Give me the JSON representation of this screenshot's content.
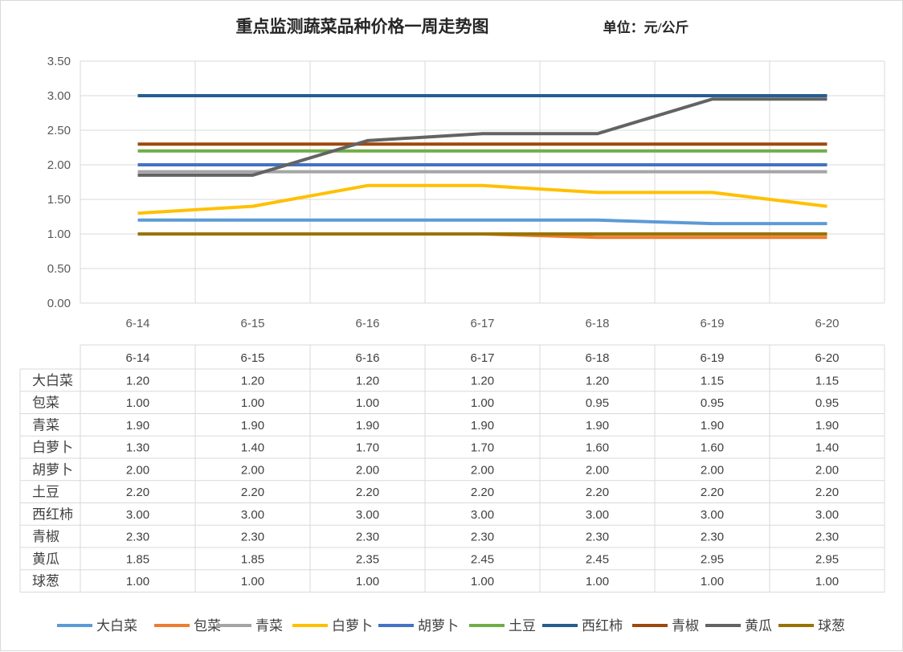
{
  "chart_data": {
    "type": "line",
    "title": "重点监测蔬菜品种价格一周走势图",
    "unit_label": "单位：元/公斤",
    "categories": [
      "6-14",
      "6-15",
      "6-16",
      "6-17",
      "6-18",
      "6-19",
      "6-20"
    ],
    "ylim": [
      0,
      3.5
    ],
    "yticks": [
      "0.00",
      "0.50",
      "1.00",
      "1.50",
      "2.00",
      "2.50",
      "3.00",
      "3.50"
    ],
    "grid": true,
    "legend_position": "bottom",
    "data_table": true,
    "series": [
      {
        "name": "大白菜",
        "color": "#5B9BD5",
        "values": [
          1.2,
          1.2,
          1.2,
          1.2,
          1.2,
          1.15,
          1.15
        ],
        "labels": [
          "1.20",
          "1.20",
          "1.20",
          "1.20",
          "1.20",
          "1.15",
          "1.15"
        ]
      },
      {
        "name": "包菜",
        "color": "#ED7D31",
        "values": [
          1.0,
          1.0,
          1.0,
          1.0,
          0.95,
          0.95,
          0.95
        ],
        "labels": [
          "1.00",
          "1.00",
          "1.00",
          "1.00",
          "0.95",
          "0.95",
          "0.95"
        ]
      },
      {
        "name": "青菜",
        "color": "#A5A5A5",
        "values": [
          1.9,
          1.9,
          1.9,
          1.9,
          1.9,
          1.9,
          1.9
        ],
        "labels": [
          "1.90",
          "1.90",
          "1.90",
          "1.90",
          "1.90",
          "1.90",
          "1.90"
        ]
      },
      {
        "name": "白萝卜",
        "color": "#FFC000",
        "values": [
          1.3,
          1.4,
          1.7,
          1.7,
          1.6,
          1.6,
          1.4
        ],
        "labels": [
          "1.30",
          "1.40",
          "1.70",
          "1.70",
          "1.60",
          "1.60",
          "1.40"
        ]
      },
      {
        "name": "胡萝卜",
        "color": "#4472C4",
        "values": [
          2.0,
          2.0,
          2.0,
          2.0,
          2.0,
          2.0,
          2.0
        ],
        "labels": [
          "2.00",
          "2.00",
          "2.00",
          "2.00",
          "2.00",
          "2.00",
          "2.00"
        ]
      },
      {
        "name": "土豆",
        "color": "#70AD47",
        "values": [
          2.2,
          2.2,
          2.2,
          2.2,
          2.2,
          2.2,
          2.2
        ],
        "labels": [
          "2.20",
          "2.20",
          "2.20",
          "2.20",
          "2.20",
          "2.20",
          "2.20"
        ]
      },
      {
        "name": "西红柿",
        "color": "#255E91",
        "values": [
          3.0,
          3.0,
          3.0,
          3.0,
          3.0,
          3.0,
          3.0
        ],
        "labels": [
          "3.00",
          "3.00",
          "3.00",
          "3.00",
          "3.00",
          "3.00",
          "3.00"
        ]
      },
      {
        "name": "青椒",
        "color": "#9E480E",
        "values": [
          2.3,
          2.3,
          2.3,
          2.3,
          2.3,
          2.3,
          2.3
        ],
        "labels": [
          "2.30",
          "2.30",
          "2.30",
          "2.30",
          "2.30",
          "2.30",
          "2.30"
        ]
      },
      {
        "name": "黄瓜",
        "color": "#636363",
        "values": [
          1.85,
          1.85,
          2.35,
          2.45,
          2.45,
          2.95,
          2.95
        ],
        "labels": [
          "1.85",
          "1.85",
          "2.35",
          "2.45",
          "2.45",
          "2.95",
          "2.95"
        ]
      },
      {
        "name": "球葱",
        "color": "#997300",
        "values": [
          1.0,
          1.0,
          1.0,
          1.0,
          1.0,
          1.0,
          1.0
        ],
        "labels": [
          "1.00",
          "1.00",
          "1.00",
          "1.00",
          "1.00",
          "1.00",
          "1.00"
        ]
      }
    ]
  }
}
